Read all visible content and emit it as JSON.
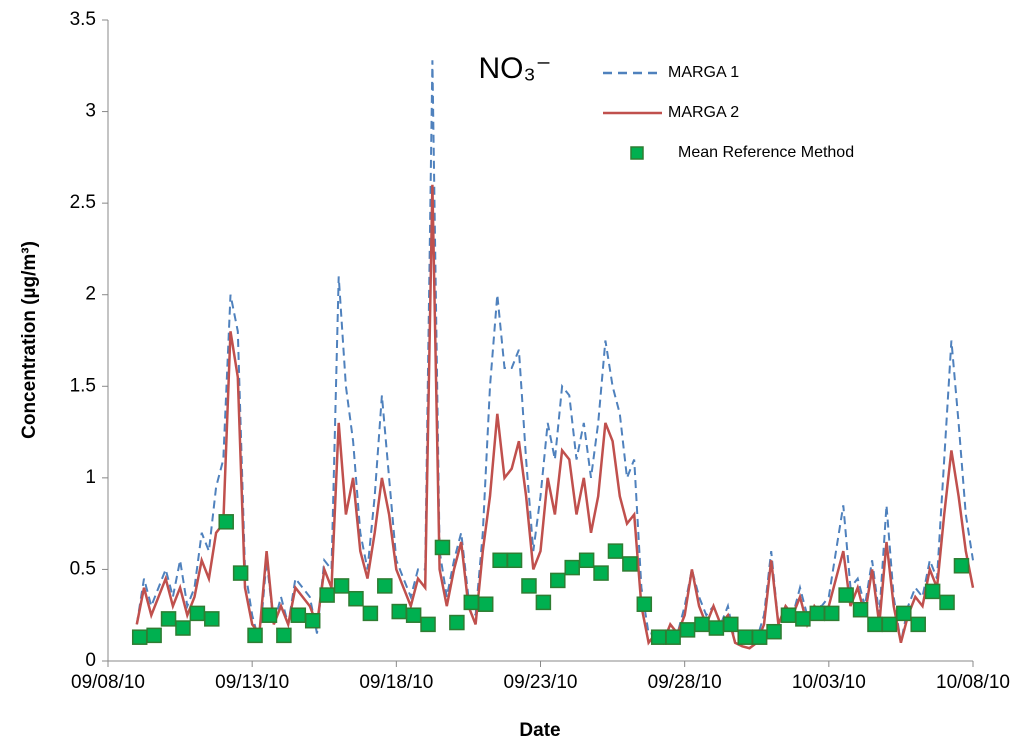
{
  "chart_data": {
    "type": "line",
    "title": "NO₃⁻",
    "x_label": "Date",
    "y_label": "Concentration (µg/m³)",
    "x": [
      1,
      1.25,
      1.5,
      1.75,
      2,
      2.25,
      2.5,
      2.75,
      3,
      3.25,
      3.5,
      3.75,
      4,
      4.25,
      4.5,
      4.75,
      5,
      5.25,
      5.5,
      5.75,
      6,
      6.25,
      6.5,
      6.75,
      7,
      7.25,
      7.5,
      7.75,
      8,
      8.25,
      8.5,
      8.75,
      9,
      9.25,
      9.5,
      9.75,
      10,
      10.25,
      10.5,
      10.75,
      11,
      11.25,
      11.5,
      11.75,
      12,
      12.25,
      12.5,
      12.75,
      13,
      13.25,
      13.5,
      13.75,
      14,
      14.25,
      14.5,
      14.75,
      15,
      15.25,
      15.5,
      15.75,
      16,
      16.25,
      16.5,
      16.75,
      17,
      17.25,
      17.5,
      17.75,
      18,
      18.25,
      18.5,
      18.75,
      19,
      19.25,
      19.5,
      19.75,
      20,
      20.25,
      20.5,
      20.75,
      21,
      21.25,
      21.5,
      21.75,
      22,
      22.25,
      22.5,
      22.75,
      23,
      23.25,
      23.5,
      23.75,
      24,
      24.25,
      24.5,
      24.75,
      25,
      25.25,
      25.5,
      25.75,
      26,
      26.25,
      26.5,
      26.75,
      27,
      27.25,
      27.5,
      27.75,
      28,
      28.25,
      28.5,
      28.75,
      29,
      29.25,
      29.5,
      29.75,
      30
    ],
    "series": [
      {
        "name": "MARGA 1",
        "color": "#4f81bd",
        "style": "dashed",
        "values": [
          0.2,
          0.45,
          0.3,
          0.4,
          0.5,
          0.35,
          0.55,
          0.3,
          0.4,
          0.7,
          0.6,
          0.95,
          1.1,
          2.0,
          1.8,
          0.5,
          0.25,
          0.1,
          0.55,
          0.2,
          0.35,
          0.2,
          0.45,
          0.4,
          0.35,
          0.15,
          0.55,
          0.5,
          2.1,
          1.5,
          1.2,
          0.7,
          0.5,
          0.9,
          1.45,
          1.0,
          0.55,
          0.45,
          0.35,
          0.5,
          0.5,
          3.28,
          0.6,
          0.35,
          0.55,
          0.7,
          0.35,
          0.25,
          0.7,
          1.5,
          2.0,
          1.6,
          1.6,
          1.7,
          1.1,
          0.6,
          0.9,
          1.3,
          1.1,
          1.5,
          1.45,
          1.1,
          1.3,
          1.0,
          1.3,
          1.75,
          1.5,
          1.35,
          1.0,
          1.1,
          0.4,
          0.15,
          0.15,
          0.1,
          0.2,
          0.15,
          0.3,
          0.5,
          0.35,
          0.25,
          0.3,
          0.2,
          0.3,
          0.1,
          0.08,
          0.07,
          0.12,
          0.25,
          0.6,
          0.2,
          0.3,
          0.25,
          0.4,
          0.25,
          0.3,
          0.3,
          0.35,
          0.6,
          0.85,
          0.4,
          0.45,
          0.3,
          0.55,
          0.25,
          0.85,
          0.35,
          0.1,
          0.3,
          0.4,
          0.35,
          0.55,
          0.45,
          1.1,
          1.75,
          1.3,
          0.8,
          0.55
        ]
      },
      {
        "name": "MARGA 2",
        "color": "#c0504d",
        "style": "solid",
        "values": [
          0.2,
          0.4,
          0.25,
          0.35,
          0.45,
          0.3,
          0.4,
          0.25,
          0.35,
          0.55,
          0.45,
          0.7,
          0.75,
          1.8,
          1.55,
          0.4,
          0.2,
          0.15,
          0.6,
          0.2,
          0.3,
          0.2,
          0.4,
          0.35,
          0.3,
          0.2,
          0.5,
          0.4,
          1.3,
          0.8,
          1.0,
          0.6,
          0.45,
          0.7,
          1.0,
          0.8,
          0.5,
          0.4,
          0.3,
          0.45,
          0.4,
          2.6,
          0.5,
          0.3,
          0.5,
          0.65,
          0.3,
          0.2,
          0.6,
          0.9,
          1.35,
          1.0,
          1.05,
          1.2,
          0.9,
          0.5,
          0.6,
          1.0,
          0.8,
          1.15,
          1.1,
          0.8,
          1.0,
          0.7,
          0.9,
          1.3,
          1.2,
          0.9,
          0.75,
          0.8,
          0.3,
          0.1,
          0.15,
          0.1,
          0.2,
          0.15,
          0.25,
          0.5,
          0.3,
          0.2,
          0.3,
          0.2,
          0.25,
          0.1,
          0.08,
          0.07,
          0.1,
          0.2,
          0.55,
          0.2,
          0.3,
          0.25,
          0.35,
          0.2,
          0.3,
          0.25,
          0.3,
          0.45,
          0.6,
          0.3,
          0.4,
          0.25,
          0.5,
          0.2,
          0.65,
          0.3,
          0.1,
          0.25,
          0.35,
          0.3,
          0.5,
          0.4,
          0.8,
          1.15,
          0.9,
          0.6,
          0.4
        ]
      },
      {
        "name": "Mean Reference Method",
        "color": "#00b050",
        "style": "markers",
        "x": [
          1.1,
          1.6,
          2.1,
          2.6,
          3.1,
          3.6,
          4.1,
          4.6,
          5.1,
          5.6,
          6.1,
          6.6,
          7.1,
          7.6,
          8.1,
          8.6,
          9.1,
          9.6,
          10.1,
          10.6,
          11.1,
          11.6,
          12.1,
          12.6,
          13.1,
          13.6,
          14.1,
          14.6,
          15.1,
          15.6,
          16.1,
          16.6,
          17.1,
          17.6,
          18.1,
          18.6,
          19.1,
          19.6,
          20.1,
          20.6,
          21.1,
          21.6,
          22.1,
          22.6,
          23.1,
          23.6,
          24.1,
          24.6,
          25.1,
          25.6,
          26.1,
          26.6,
          27.1,
          27.6,
          28.1,
          28.6,
          29.1,
          29.6
        ],
        "values": [
          0.13,
          0.14,
          0.23,
          0.18,
          0.26,
          0.23,
          0.76,
          0.48,
          0.14,
          0.25,
          0.14,
          0.25,
          0.22,
          0.36,
          0.41,
          0.34,
          0.26,
          0.41,
          0.27,
          0.25,
          0.2,
          0.62,
          0.21,
          0.32,
          0.31,
          0.55,
          0.55,
          0.41,
          0.32,
          0.44,
          0.51,
          0.55,
          0.48,
          0.6,
          0.53,
          0.31,
          0.13,
          0.13,
          0.17,
          0.2,
          0.18,
          0.2,
          0.13,
          0.13,
          0.16,
          0.25,
          0.23,
          0.26,
          0.26,
          0.36,
          0.28,
          0.2,
          0.2,
          0.26,
          0.2,
          0.38,
          0.32,
          0.52
        ]
      }
    ],
    "xlim": [
      0,
      30
    ],
    "xticks": [
      {
        "value": 0,
        "label": "09/08/10"
      },
      {
        "value": 5,
        "label": "09/13/10"
      },
      {
        "value": 10,
        "label": "09/18/10"
      },
      {
        "value": 15,
        "label": "09/23/10"
      },
      {
        "value": 20,
        "label": "09/28/10"
      },
      {
        "value": 25,
        "label": "10/03/10"
      },
      {
        "value": 30,
        "label": "10/08/10"
      }
    ],
    "ylim": [
      0,
      3.5
    ],
    "yticks": [
      0,
      0.5,
      1,
      1.5,
      2,
      2.5,
      3,
      3.5
    ],
    "grid": false
  }
}
